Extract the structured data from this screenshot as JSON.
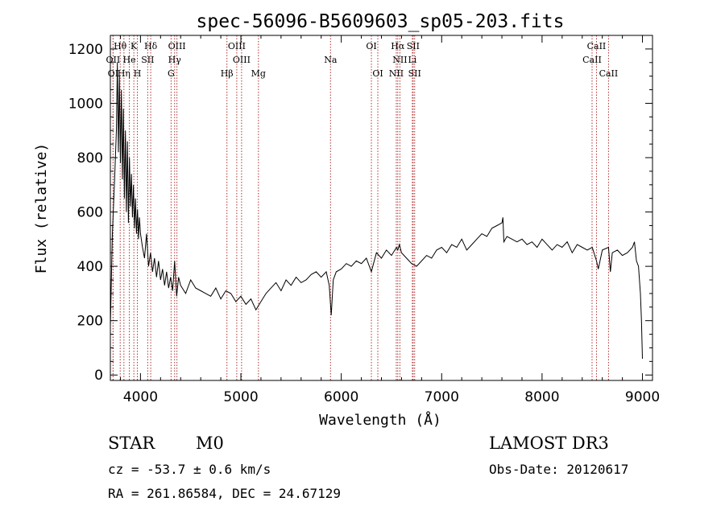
{
  "chart_data": {
    "type": "line",
    "title": "spec-56096-B5609603_sp05-203.fits",
    "xlabel": "Wavelength (Å)",
    "ylabel": "Flux (relative)",
    "xlim": [
      3700,
      9100
    ],
    "ylim": [
      -20,
      1250
    ],
    "x_ticks": [
      4000,
      5000,
      6000,
      7000,
      8000,
      9000
    ],
    "y_ticks": [
      0,
      200,
      400,
      600,
      800,
      1000,
      1200
    ],
    "series": [
      {
        "name": "flux",
        "x": [
          3700,
          3720,
          3740,
          3760,
          3770,
          3780,
          3790,
          3800,
          3810,
          3820,
          3830,
          3840,
          3850,
          3860,
          3870,
          3880,
          3890,
          3900,
          3910,
          3920,
          3930,
          3940,
          3950,
          3960,
          3970,
          3980,
          3990,
          4000,
          4020,
          4040,
          4060,
          4080,
          4100,
          4120,
          4140,
          4160,
          4180,
          4200,
          4220,
          4240,
          4260,
          4280,
          4300,
          4320,
          4340,
          4360,
          4380,
          4400,
          4450,
          4500,
          4550,
          4600,
          4650,
          4700,
          4750,
          4800,
          4850,
          4900,
          4950,
          5000,
          5050,
          5100,
          5150,
          5200,
          5250,
          5300,
          5350,
          5400,
          5450,
          5500,
          5550,
          5600,
          5650,
          5700,
          5750,
          5800,
          5850,
          5880,
          5900,
          5920,
          5950,
          6000,
          6050,
          6100,
          6150,
          6200,
          6250,
          6300,
          6350,
          6400,
          6450,
          6500,
          6550,
          6563,
          6580,
          6600,
          6650,
          6700,
          6750,
          6800,
          6850,
          6900,
          6950,
          7000,
          7050,
          7100,
          7150,
          7200,
          7250,
          7300,
          7350,
          7400,
          7450,
          7500,
          7550,
          7600,
          7610,
          7620,
          7650,
          7700,
          7750,
          7800,
          7850,
          7900,
          7950,
          8000,
          8050,
          8100,
          8150,
          8200,
          8250,
          8300,
          8350,
          8400,
          8450,
          8500,
          8542,
          8560,
          8600,
          8662,
          8680,
          8700,
          8750,
          8800,
          8850,
          8900,
          8920,
          8940,
          8960,
          8980,
          8990,
          9000
        ],
        "values": [
          180,
          520,
          700,
          900,
          1150,
          820,
          1100,
          780,
          1050,
          720,
          980,
          650,
          900,
          600,
          860,
          560,
          800,
          620,
          740,
          580,
          700,
          540,
          650,
          520,
          610,
          500,
          580,
          520,
          470,
          430,
          520,
          400,
          450,
          380,
          430,
          360,
          420,
          350,
          390,
          330,
          380,
          320,
          360,
          310,
          420,
          290,
          360,
          330,
          300,
          350,
          320,
          310,
          300,
          290,
          320,
          280,
          310,
          300,
          270,
          290,
          260,
          280,
          240,
          270,
          300,
          320,
          340,
          310,
          350,
          330,
          360,
          340,
          350,
          370,
          380,
          360,
          380,
          330,
          220,
          350,
          380,
          390,
          410,
          400,
          420,
          410,
          430,
          380,
          450,
          430,
          460,
          440,
          470,
          460,
          480,
          450,
          430,
          410,
          400,
          420,
          440,
          430,
          460,
          470,
          450,
          480,
          470,
          500,
          460,
          480,
          500,
          520,
          510,
          540,
          550,
          560,
          580,
          490,
          510,
          500,
          490,
          500,
          480,
          490,
          470,
          500,
          480,
          460,
          480,
          470,
          490,
          450,
          480,
          470,
          460,
          470,
          420,
          390,
          460,
          470,
          380,
          450,
          460,
          440,
          450,
          470,
          490,
          420,
          400,
          300,
          200,
          60
        ]
      }
    ],
    "spectral_lines": [
      {
        "label": "Hθ",
        "x": 3798,
        "row": 0
      },
      {
        "label": "K",
        "x": 3934,
        "row": 0
      },
      {
        "label": "Hδ",
        "x": 4102,
        "row": 0
      },
      {
        "label": "OIII",
        "x": 4363,
        "row": 0
      },
      {
        "label": "OIII",
        "x": 4959,
        "row": 0
      },
      {
        "label": "OI",
        "x": 6300,
        "row": 0
      },
      {
        "label": "Hα",
        "x": 6563,
        "row": 0
      },
      {
        "label": "SII",
        "x": 6716,
        "row": 0
      },
      {
        "label": "CaII",
        "x": 8542,
        "row": 0
      },
      {
        "label": "OII",
        "x": 3727,
        "row": 1
      },
      {
        "label": "He",
        "x": 3889,
        "row": 1
      },
      {
        "label": "SII",
        "x": 4072,
        "row": 1
      },
      {
        "label": "Hγ",
        "x": 4340,
        "row": 1
      },
      {
        "label": "OIII",
        "x": 5007,
        "row": 1
      },
      {
        "label": "Na",
        "x": 5893,
        "row": 1
      },
      {
        "label": "NII",
        "x": 6584,
        "row": 1
      },
      {
        "label": "Li",
        "x": 6708,
        "row": 1
      },
      {
        "label": "CaII",
        "x": 8498,
        "row": 1
      },
      {
        "label": "OI",
        "x": 3727,
        "row": 2
      },
      {
        "label": "Hη",
        "x": 3835,
        "row": 2
      },
      {
        "label": "H",
        "x": 3969,
        "row": 2
      },
      {
        "label": "G",
        "x": 4305,
        "row": 2
      },
      {
        "label": "Hβ",
        "x": 4861,
        "row": 2
      },
      {
        "label": "Mg",
        "x": 5175,
        "row": 2
      },
      {
        "label": "OI",
        "x": 6364,
        "row": 2
      },
      {
        "label": "NII",
        "x": 6548,
        "row": 2
      },
      {
        "label": "SII",
        "x": 6731,
        "row": 2
      },
      {
        "label": "CaII",
        "x": 8662,
        "row": 2
      }
    ]
  },
  "info": {
    "object_class": "STAR",
    "subclass": "M0",
    "survey": "LAMOST DR3",
    "cz": "cz = -53.7 ± 0.6 km/s",
    "obs_date": "Obs-Date: 20120617",
    "coords": "RA = 261.86584, DEC =  24.67129"
  },
  "colors": {
    "line": "#000000",
    "marker": "#b03030"
  }
}
